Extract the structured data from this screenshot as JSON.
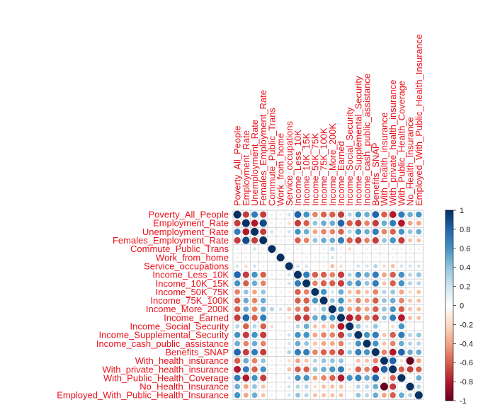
{
  "chart_data": {
    "type": "heatmap",
    "variables": [
      "Poverty_All_People",
      "Employment_Rate",
      "Unemployment_Rate",
      "Females_Employment_Rate",
      "Commute_Public_Trans",
      "Work_from_home",
      "Service_occupations",
      "Income_Less_10K",
      "Income_10K_15K",
      "Income_50K_75K",
      "Income_75K_100K",
      "Income_More_200K",
      "Income_Earned",
      "Income_Social_Security",
      "Income_Supplemental_Security",
      "Income_cash_public_assistance",
      "Benefits_SNAP",
      "With_health_insurance",
      "With_private_health_insurance",
      "With_Public_Health_Coverage",
      "No_Health_Insurance",
      "Employed_With_Public_Health_Insurance"
    ],
    "matrix": [
      [
        1,
        -0.7,
        0.7,
        -0.7,
        0.1,
        -0.1,
        0.2,
        0.8,
        0.6,
        -0.5,
        -0.6,
        -0.6,
        -0.7,
        0.3,
        0.6,
        0.5,
        0.8,
        -0.6,
        -0.8,
        0.7,
        0.5,
        0.6
      ],
      [
        -0.7,
        1,
        -0.8,
        0.9,
        -0.1,
        0.1,
        -0.2,
        -0.7,
        -0.6,
        0.4,
        0.5,
        0.5,
        0.8,
        -0.6,
        -0.7,
        -0.5,
        -0.7,
        0.5,
        0.7,
        -0.8,
        -0.4,
        -0.4
      ],
      [
        0.7,
        -0.8,
        1,
        -0.7,
        0.2,
        -0.1,
        0.2,
        0.6,
        0.5,
        -0.4,
        -0.5,
        -0.5,
        -0.6,
        0.3,
        0.6,
        0.5,
        0.7,
        -0.5,
        -0.6,
        0.6,
        0.4,
        0.5
      ],
      [
        -0.7,
        0.9,
        -0.7,
        1,
        -0.1,
        0.1,
        -0.1,
        -0.6,
        -0.5,
        0.4,
        0.5,
        0.5,
        0.7,
        -0.6,
        -0.7,
        -0.5,
        -0.7,
        0.4,
        0.6,
        -0.7,
        -0.3,
        -0.3
      ],
      [
        0.1,
        -0.1,
        0.2,
        -0.1,
        1,
        0.0,
        0.1,
        0.1,
        0.0,
        0.0,
        0.1,
        0.3,
        0.1,
        -0.2,
        0.0,
        0.1,
        0.1,
        -0.1,
        -0.1,
        0.1,
        0.1,
        0.1
      ],
      [
        -0.1,
        0.1,
        -0.1,
        0.1,
        0.0,
        1,
        0.0,
        -0.1,
        -0.1,
        0.1,
        0.1,
        0.2,
        0.1,
        0.0,
        -0.1,
        -0.1,
        -0.1,
        0.1,
        0.1,
        -0.1,
        -0.1,
        0.0
      ],
      [
        0.2,
        -0.2,
        0.2,
        -0.1,
        0.1,
        0.0,
        1,
        0.2,
        0.2,
        -0.1,
        -0.1,
        -0.3,
        -0.2,
        0.1,
        0.2,
        0.2,
        0.3,
        -0.2,
        -0.3,
        0.2,
        0.2,
        0.2
      ],
      [
        0.8,
        -0.7,
        0.6,
        -0.6,
        0.1,
        -0.1,
        0.2,
        1,
        0.7,
        -0.6,
        -0.6,
        -0.5,
        -0.7,
        0.3,
        0.6,
        0.5,
        0.7,
        -0.4,
        -0.6,
        0.6,
        0.3,
        0.4
      ],
      [
        0.6,
        -0.6,
        0.5,
        -0.5,
        0.0,
        -0.1,
        0.2,
        0.7,
        1,
        -0.5,
        -0.6,
        -0.6,
        -0.7,
        0.5,
        0.6,
        0.4,
        0.7,
        -0.3,
        -0.6,
        0.6,
        0.3,
        0.3
      ],
      [
        -0.5,
        0.4,
        -0.4,
        0.4,
        0.0,
        0.1,
        -0.1,
        -0.6,
        -0.5,
        1,
        0.6,
        0.2,
        0.5,
        -0.3,
        -0.4,
        -0.3,
        -0.5,
        0.3,
        0.4,
        -0.4,
        -0.2,
        -0.3
      ],
      [
        -0.6,
        0.5,
        -0.5,
        0.5,
        0.1,
        0.1,
        -0.1,
        -0.6,
        -0.6,
        0.6,
        1,
        0.4,
        0.6,
        -0.3,
        -0.5,
        -0.4,
        -0.6,
        0.4,
        0.5,
        -0.5,
        -0.3,
        -0.3
      ],
      [
        -0.6,
        0.5,
        -0.5,
        0.5,
        0.3,
        0.2,
        -0.3,
        -0.5,
        -0.6,
        0.2,
        0.4,
        1,
        0.6,
        -0.4,
        -0.5,
        -0.4,
        -0.6,
        0.4,
        0.6,
        -0.6,
        -0.3,
        -0.3
      ],
      [
        -0.7,
        0.8,
        -0.6,
        0.7,
        0.1,
        0.1,
        -0.2,
        -0.7,
        -0.7,
        0.5,
        0.6,
        0.6,
        1,
        -0.8,
        -0.7,
        -0.5,
        -0.7,
        0.4,
        0.7,
        -0.8,
        -0.3,
        -0.3
      ],
      [
        0.3,
        -0.6,
        0.3,
        -0.6,
        -0.2,
        0.0,
        0.1,
        0.3,
        0.5,
        -0.3,
        -0.3,
        -0.4,
        -0.8,
        1,
        0.4,
        0.2,
        0.4,
        0.0,
        -0.2,
        0.6,
        -0.1,
        0.0
      ],
      [
        0.6,
        -0.7,
        0.6,
        -0.7,
        0.0,
        -0.1,
        0.2,
        0.6,
        0.6,
        -0.4,
        -0.5,
        -0.5,
        -0.7,
        0.4,
        1,
        0.6,
        0.7,
        -0.3,
        -0.6,
        0.7,
        0.3,
        0.4
      ],
      [
        0.5,
        -0.5,
        0.5,
        -0.5,
        0.1,
        -0.1,
        0.2,
        0.5,
        0.4,
        -0.3,
        -0.4,
        -0.4,
        -0.5,
        0.2,
        0.6,
        1,
        0.6,
        -0.3,
        -0.5,
        0.5,
        0.3,
        0.3
      ],
      [
        0.8,
        -0.7,
        0.7,
        -0.7,
        0.1,
        -0.1,
        0.3,
        0.7,
        0.7,
        -0.5,
        -0.6,
        -0.6,
        -0.7,
        0.4,
        0.7,
        0.6,
        1,
        -0.5,
        -0.8,
        0.8,
        0.5,
        0.5
      ],
      [
        -0.6,
        0.5,
        -0.5,
        0.4,
        -0.1,
        0.1,
        -0.2,
        -0.4,
        -0.3,
        0.3,
        0.4,
        0.4,
        0.4,
        0.0,
        -0.3,
        -0.3,
        -0.5,
        1,
        0.8,
        -0.2,
        -1.0,
        -0.4
      ],
      [
        -0.8,
        0.7,
        -0.6,
        0.6,
        -0.1,
        0.1,
        -0.3,
        -0.6,
        -0.6,
        0.4,
        0.5,
        0.6,
        0.7,
        -0.2,
        -0.6,
        -0.5,
        -0.8,
        0.8,
        1,
        -0.6,
        -0.7,
        -0.6
      ],
      [
        0.7,
        -0.8,
        0.6,
        -0.7,
        0.1,
        -0.1,
        0.2,
        0.6,
        0.6,
        -0.4,
        -0.5,
        -0.6,
        -0.8,
        0.6,
        0.7,
        0.5,
        0.8,
        -0.2,
        -0.6,
        1,
        0.1,
        0.5
      ],
      [
        0.5,
        -0.4,
        0.4,
        -0.3,
        0.1,
        -0.1,
        0.2,
        0.3,
        0.3,
        -0.2,
        -0.3,
        -0.3,
        -0.3,
        -0.1,
        0.3,
        0.3,
        0.5,
        -1.0,
        -0.7,
        0.1,
        1,
        0.3
      ],
      [
        0.6,
        -0.4,
        0.5,
        -0.3,
        0.1,
        0.0,
        0.2,
        0.4,
        0.3,
        -0.3,
        -0.3,
        -0.3,
        -0.3,
        0.0,
        0.4,
        0.3,
        0.5,
        -0.4,
        -0.6,
        0.5,
        0.3,
        1
      ]
    ],
    "legend_ticks": [
      "1",
      "0.8",
      "0.6",
      "0.4",
      "0.2",
      "0",
      "-0.2",
      "-0.4",
      "-0.6",
      "-0.8",
      "-1"
    ],
    "value_range": [
      -1,
      1
    ],
    "legend_position": "right",
    "colors": {
      "label": "#e8111b",
      "grid": "#cfcfcf",
      "scale": [
        "#67001f",
        "#b2182b",
        "#d6604d",
        "#f4a582",
        "#fddbc7",
        "#ffffff",
        "#d1e5f0",
        "#92c5de",
        "#4393c3",
        "#2166ac",
        "#053061"
      ]
    }
  }
}
